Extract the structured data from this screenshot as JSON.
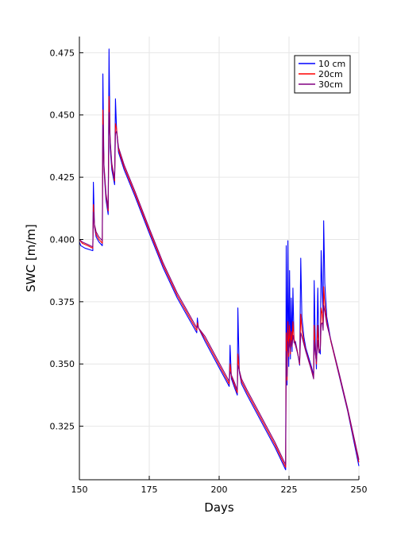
{
  "chart_data": {
    "type": "line",
    "xlabel": "Days",
    "ylabel": "SWC [m/m]",
    "xlim": [
      150,
      250
    ],
    "ylim": [
      0.3035,
      0.4815
    ],
    "xticks": [
      150,
      175,
      200,
      225,
      250
    ],
    "yticks": [
      0.325,
      0.35,
      0.375,
      0.4,
      0.425,
      0.45,
      0.475
    ],
    "ytick_labels": [
      "0.325",
      "0.350",
      "0.375",
      "0.400",
      "0.425",
      "0.450",
      "0.475"
    ],
    "grid": true,
    "legend_position": "top-right",
    "series": [
      {
        "name": "10 cm",
        "color": "#0000ff",
        "points": [
          [
            150,
            0.399
          ],
          [
            150.5,
            0.3975
          ],
          [
            152,
            0.3965
          ],
          [
            154.8,
            0.3955
          ],
          [
            155,
            0.423
          ],
          [
            155.4,
            0.405
          ],
          [
            156,
            0.401
          ],
          [
            157,
            0.399
          ],
          [
            158.2,
            0.3975
          ],
          [
            158.4,
            0.4665
          ],
          [
            158.8,
            0.428
          ],
          [
            159.5,
            0.416
          ],
          [
            160.3,
            0.41
          ],
          [
            160.6,
            0.4765
          ],
          [
            161,
            0.437
          ],
          [
            161.6,
            0.428
          ],
          [
            162.6,
            0.422
          ],
          [
            162.9,
            0.4565
          ],
          [
            163.3,
            0.444
          ],
          [
            164,
            0.435
          ],
          [
            166,
            0.428
          ],
          [
            170,
            0.417
          ],
          [
            175,
            0.4025
          ],
          [
            180,
            0.3885
          ],
          [
            185,
            0.3765
          ],
          [
            188,
            0.3705
          ],
          [
            191,
            0.3645
          ],
          [
            192,
            0.3625
          ],
          [
            192.2,
            0.3685
          ],
          [
            192.6,
            0.3645
          ],
          [
            195,
            0.359
          ],
          [
            200,
            0.3485
          ],
          [
            203.6,
            0.341
          ],
          [
            203.9,
            0.3575
          ],
          [
            204.4,
            0.344
          ],
          [
            205.5,
            0.3405
          ],
          [
            206.5,
            0.3375
          ],
          [
            206.7,
            0.3725
          ],
          [
            207.2,
            0.347
          ],
          [
            208,
            0.342
          ],
          [
            210,
            0.3375
          ],
          [
            215,
            0.327
          ],
          [
            220,
            0.3165
          ],
          [
            223.8,
            0.3075
          ],
          [
            224,
            0.3975
          ],
          [
            224.3,
            0.3415
          ],
          [
            224.6,
            0.3995
          ],
          [
            224.9,
            0.349
          ],
          [
            225.2,
            0.3875
          ],
          [
            225.5,
            0.352
          ],
          [
            225.8,
            0.3765
          ],
          [
            226.1,
            0.355
          ],
          [
            226.4,
            0.3805
          ],
          [
            226.8,
            0.3585
          ],
          [
            227.3,
            0.359
          ],
          [
            228,
            0.355
          ],
          [
            228.8,
            0.3495
          ],
          [
            229.2,
            0.3925
          ],
          [
            229.6,
            0.369
          ],
          [
            230.3,
            0.361
          ],
          [
            231,
            0.3565
          ],
          [
            233,
            0.349
          ],
          [
            233.8,
            0.3455
          ],
          [
            234,
            0.3835
          ],
          [
            234.4,
            0.359
          ],
          [
            234.8,
            0.348
          ],
          [
            235.3,
            0.3805
          ],
          [
            235.7,
            0.356
          ],
          [
            236.2,
            0.354
          ],
          [
            236.5,
            0.3955
          ],
          [
            236.9,
            0.3785
          ],
          [
            237.2,
            0.3705
          ],
          [
            237.4,
            0.4075
          ],
          [
            237.8,
            0.3825
          ],
          [
            238.5,
            0.369
          ],
          [
            240,
            0.359
          ],
          [
            243,
            0.345
          ],
          [
            246,
            0.331
          ],
          [
            250,
            0.309
          ]
        ]
      },
      {
        "name": "20cm",
        "color": "#ff0000",
        "points": [
          [
            150,
            0.4
          ],
          [
            151,
            0.3985
          ],
          [
            153,
            0.3975
          ],
          [
            154.8,
            0.3965
          ],
          [
            155,
            0.414
          ],
          [
            155.4,
            0.4055
          ],
          [
            156,
            0.402
          ],
          [
            157,
            0.4
          ],
          [
            158.2,
            0.3985
          ],
          [
            158.4,
            0.452
          ],
          [
            158.8,
            0.429
          ],
          [
            159.5,
            0.4175
          ],
          [
            160.3,
            0.4115
          ],
          [
            160.6,
            0.4575
          ],
          [
            161,
            0.4395
          ],
          [
            161.6,
            0.4295
          ],
          [
            162.6,
            0.4235
          ],
          [
            162.9,
            0.4465
          ],
          [
            163.3,
            0.4445
          ],
          [
            164,
            0.436
          ],
          [
            166,
            0.429
          ],
          [
            170,
            0.418
          ],
          [
            175,
            0.4035
          ],
          [
            180,
            0.3895
          ],
          [
            185,
            0.3775
          ],
          [
            188,
            0.3715
          ],
          [
            191,
            0.3655
          ],
          [
            192,
            0.3635
          ],
          [
            192.2,
            0.3665
          ],
          [
            192.6,
            0.3645
          ],
          [
            195,
            0.36
          ],
          [
            200,
            0.3495
          ],
          [
            203.6,
            0.342
          ],
          [
            203.9,
            0.35
          ],
          [
            204.4,
            0.345
          ],
          [
            205.5,
            0.3415
          ],
          [
            206.5,
            0.3385
          ],
          [
            206.7,
            0.354
          ],
          [
            207.2,
            0.3475
          ],
          [
            208,
            0.343
          ],
          [
            210,
            0.3385
          ],
          [
            215,
            0.328
          ],
          [
            220,
            0.3175
          ],
          [
            223.8,
            0.3085
          ],
          [
            224,
            0.3625
          ],
          [
            224.3,
            0.3435
          ],
          [
            224.6,
            0.367
          ],
          [
            224.9,
            0.353
          ],
          [
            225.2,
            0.3655
          ],
          [
            225.5,
            0.354
          ],
          [
            225.8,
            0.363
          ],
          [
            226.1,
            0.357
          ],
          [
            226.4,
            0.367
          ],
          [
            226.8,
            0.36
          ],
          [
            227.3,
            0.358
          ],
          [
            228,
            0.355
          ],
          [
            228.8,
            0.35
          ],
          [
            229.2,
            0.37
          ],
          [
            229.6,
            0.364
          ],
          [
            230.3,
            0.359
          ],
          [
            231,
            0.3555
          ],
          [
            233,
            0.348
          ],
          [
            233.8,
            0.3445
          ],
          [
            234,
            0.3655
          ],
          [
            234.4,
            0.355
          ],
          [
            234.8,
            0.35
          ],
          [
            235.3,
            0.3655
          ],
          [
            235.7,
            0.355
          ],
          [
            236.2,
            0.356
          ],
          [
            236.5,
            0.3725
          ],
          [
            236.9,
            0.37
          ],
          [
            237.2,
            0.365
          ],
          [
            237.4,
            0.381
          ],
          [
            237.8,
            0.374
          ],
          [
            238.5,
            0.367
          ],
          [
            240,
            0.359
          ],
          [
            243,
            0.3455
          ],
          [
            246,
            0.3315
          ],
          [
            250,
            0.3105
          ]
        ]
      },
      {
        "name": "30cm",
        "color": "#800080",
        "points": [
          [
            150,
            0.4
          ],
          [
            151,
            0.399
          ],
          [
            153,
            0.398
          ],
          [
            154.8,
            0.397
          ],
          [
            155,
            0.411
          ],
          [
            155.4,
            0.406
          ],
          [
            156,
            0.403
          ],
          [
            157,
            0.401
          ],
          [
            158.2,
            0.3995
          ],
          [
            158.4,
            0.446
          ],
          [
            158.8,
            0.43
          ],
          [
            159.5,
            0.4185
          ],
          [
            160.3,
            0.4125
          ],
          [
            160.6,
            0.451
          ],
          [
            161,
            0.44
          ],
          [
            161.6,
            0.4305
          ],
          [
            162.6,
            0.4245
          ],
          [
            162.9,
            0.4425
          ],
          [
            163.3,
            0.4435
          ],
          [
            164,
            0.437
          ],
          [
            166,
            0.43
          ],
          [
            170,
            0.419
          ],
          [
            175,
            0.4045
          ],
          [
            180,
            0.3905
          ],
          [
            185,
            0.3785
          ],
          [
            188,
            0.3725
          ],
          [
            191,
            0.3665
          ],
          [
            192,
            0.3645
          ],
          [
            192.2,
            0.3655
          ],
          [
            192.6,
            0.3645
          ],
          [
            195,
            0.361
          ],
          [
            200,
            0.3505
          ],
          [
            203.6,
            0.343
          ],
          [
            203.9,
            0.347
          ],
          [
            204.4,
            0.3455
          ],
          [
            205.5,
            0.3425
          ],
          [
            206.5,
            0.3395
          ],
          [
            206.7,
            0.3495
          ],
          [
            207.2,
            0.3475
          ],
          [
            208,
            0.344
          ],
          [
            210,
            0.3395
          ],
          [
            215,
            0.329
          ],
          [
            220,
            0.3185
          ],
          [
            223.8,
            0.3095
          ],
          [
            224,
            0.355
          ],
          [
            224.3,
            0.345
          ],
          [
            224.6,
            0.359
          ],
          [
            224.9,
            0.3545
          ],
          [
            225.2,
            0.36
          ],
          [
            225.5,
            0.355
          ],
          [
            225.8,
            0.3595
          ],
          [
            226.1,
            0.357
          ],
          [
            226.4,
            0.3615
          ],
          [
            226.8,
            0.359
          ],
          [
            227.3,
            0.3575
          ],
          [
            228,
            0.3545
          ],
          [
            228.8,
            0.3505
          ],
          [
            229.2,
            0.3625
          ],
          [
            229.6,
            0.361
          ],
          [
            230.3,
            0.358
          ],
          [
            231,
            0.355
          ],
          [
            233,
            0.3475
          ],
          [
            233.8,
            0.344
          ],
          [
            234,
            0.3595
          ],
          [
            234.4,
            0.354
          ],
          [
            234.8,
            0.351
          ],
          [
            235.3,
            0.3595
          ],
          [
            235.7,
            0.3545
          ],
          [
            236.2,
            0.356
          ],
          [
            236.5,
            0.366
          ],
          [
            236.9,
            0.3665
          ],
          [
            237.2,
            0.3635
          ],
          [
            237.4,
            0.3735
          ],
          [
            237.8,
            0.371
          ],
          [
            238.5,
            0.366
          ],
          [
            240,
            0.3595
          ],
          [
            243,
            0.346
          ],
          [
            246,
            0.332
          ],
          [
            250,
            0.3115
          ]
        ]
      }
    ]
  }
}
